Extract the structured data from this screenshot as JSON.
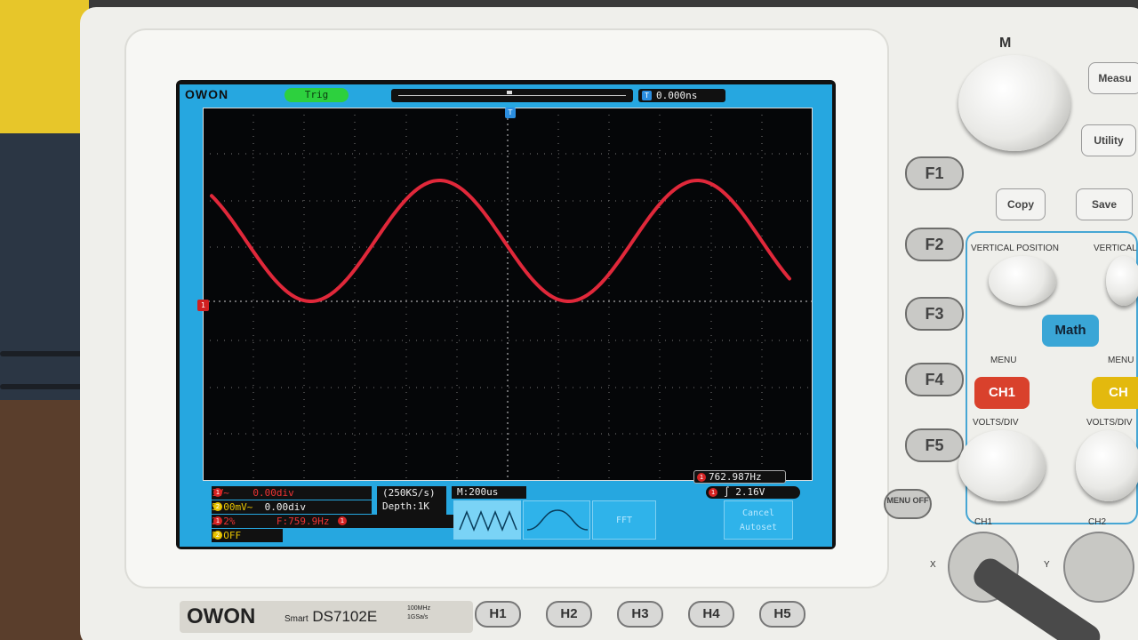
{
  "screen": {
    "logo": "OWON",
    "trig_status": "Trig",
    "trigger_time": "0.000ns",
    "trigger_badge": "T",
    "ch1_marker": "1",
    "frequency_readout": "762.987Hz",
    "trigger_level": "2.16V",
    "bottom": {
      "ch1_scale": "1V~",
      "ch1_offset": "0.00div",
      "ch2_scale": "5.00mV~",
      "ch2_offset": "0.00div",
      "math_line": "2.2%",
      "math_freq": "F:759.9Hz",
      "fft_state": "F:OFF",
      "sample_rate": "(250KS/s)",
      "depth": "Depth:1K",
      "timebase": "M:200us",
      "softkeys": [
        "",
        "",
        "FFT",
        "Cancel Autoset"
      ]
    }
  },
  "front_panel": {
    "brand_logo": "OWON",
    "brand_model_prefix": "Smart",
    "brand_model": "DS7102E",
    "brand_spec_1": "100MHz",
    "brand_spec_2": "1GSa/s",
    "h_buttons": [
      "H1",
      "H2",
      "H3",
      "H4",
      "H5"
    ],
    "f_buttons": [
      "F1",
      "F2",
      "F3",
      "F4",
      "F5"
    ],
    "menu_off": "MENU OFF",
    "m_knob_label": "M",
    "measure": "Measu",
    "utility": "Utility",
    "copy": "Copy",
    "save": "Save",
    "vertical_position": "VERTICAL POSITION",
    "vertical_label_2": "VERTICAL",
    "math": "Math",
    "menu_label_1": "MENU",
    "menu_label_2": "MENU",
    "ch1_button": "CH1",
    "ch2_button": "CH",
    "volts_div_1": "VOLTS/DIV",
    "volts_div_2": "VOLTS/DIV",
    "ch1_connector": "CH1",
    "ch2_connector": "CH2",
    "x_label": "X",
    "y_label": "Y"
  },
  "colors": {
    "screen_border": "#26a7e0",
    "waveform": "#e0283a",
    "trig_ok": "#2dd03e",
    "ch1": "#d02020",
    "ch2": "#e8c400"
  },
  "waveform": {
    "shape": "sine",
    "timebase_per_div": "200us"
  }
}
